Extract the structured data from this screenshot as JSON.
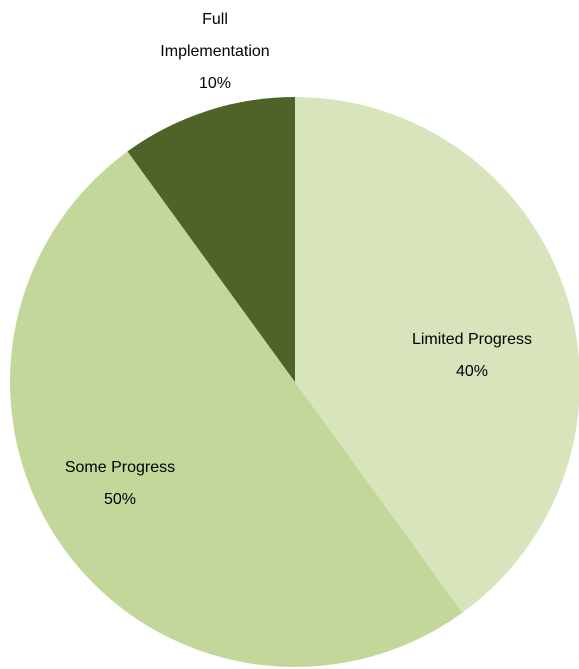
{
  "chart_data": {
    "type": "pie",
    "categories": [
      "Limited Progress",
      "Some Progress",
      "Full Implementation"
    ],
    "values": [
      40,
      50,
      10
    ],
    "value_labels": [
      "40%",
      "50%",
      "10%"
    ],
    "colors": [
      "#d8e4bc",
      "#c4d79b",
      "#4f6228"
    ]
  }
}
